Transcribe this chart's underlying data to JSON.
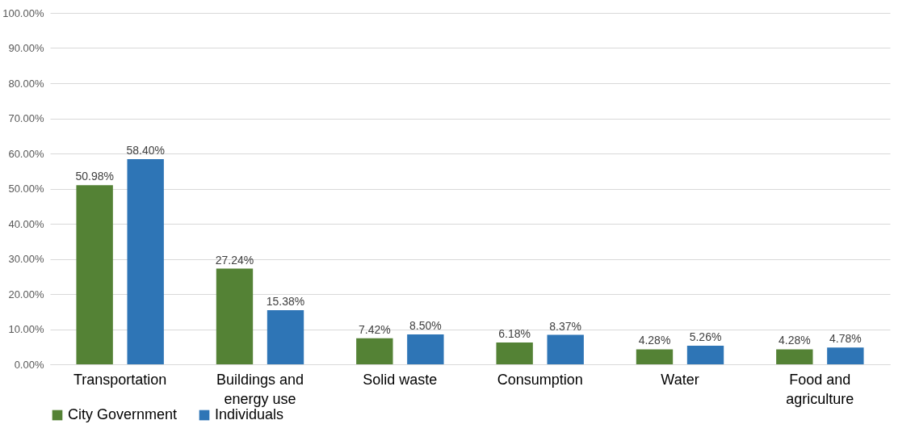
{
  "chart_data": {
    "type": "bar",
    "categories": [
      "Transportation",
      "Buildings and energy use",
      "Solid waste",
      "Consumption",
      "Water",
      "Food and agriculture"
    ],
    "series": [
      {
        "name": "City Government",
        "color": "#548235",
        "values": [
          50.98,
          27.24,
          7.42,
          6.18,
          4.28,
          4.28
        ],
        "value_labels": [
          "50.98%",
          "27.24%",
          "7.42%",
          "6.18%",
          "4.28%",
          "4.28%"
        ]
      },
      {
        "name": "Individuals",
        "color": "#2e75b6",
        "values": [
          58.4,
          15.38,
          8.5,
          8.37,
          5.26,
          4.78
        ],
        "value_labels": [
          "58.40%",
          "15.38%",
          "8.50%",
          "8.37%",
          "5.26%",
          "4.78%"
        ]
      }
    ],
    "ylim": [
      0,
      100
    ],
    "yticks": [
      {
        "value": 0,
        "label": "0.00%"
      },
      {
        "value": 10,
        "label": "10.00%"
      },
      {
        "value": 20,
        "label": "20.00%"
      },
      {
        "value": 30,
        "label": "30.00%"
      },
      {
        "value": 40,
        "label": "40.00%"
      },
      {
        "value": 50,
        "label": "50.00%"
      },
      {
        "value": 60,
        "label": "60.00%"
      },
      {
        "value": 70,
        "label": "70.00%"
      },
      {
        "value": 80,
        "label": "80.00%"
      },
      {
        "value": 90,
        "label": "90.00%"
      },
      {
        "value": 100,
        "label": "100.00%"
      }
    ],
    "grid": "y",
    "legend": "bottom"
  }
}
